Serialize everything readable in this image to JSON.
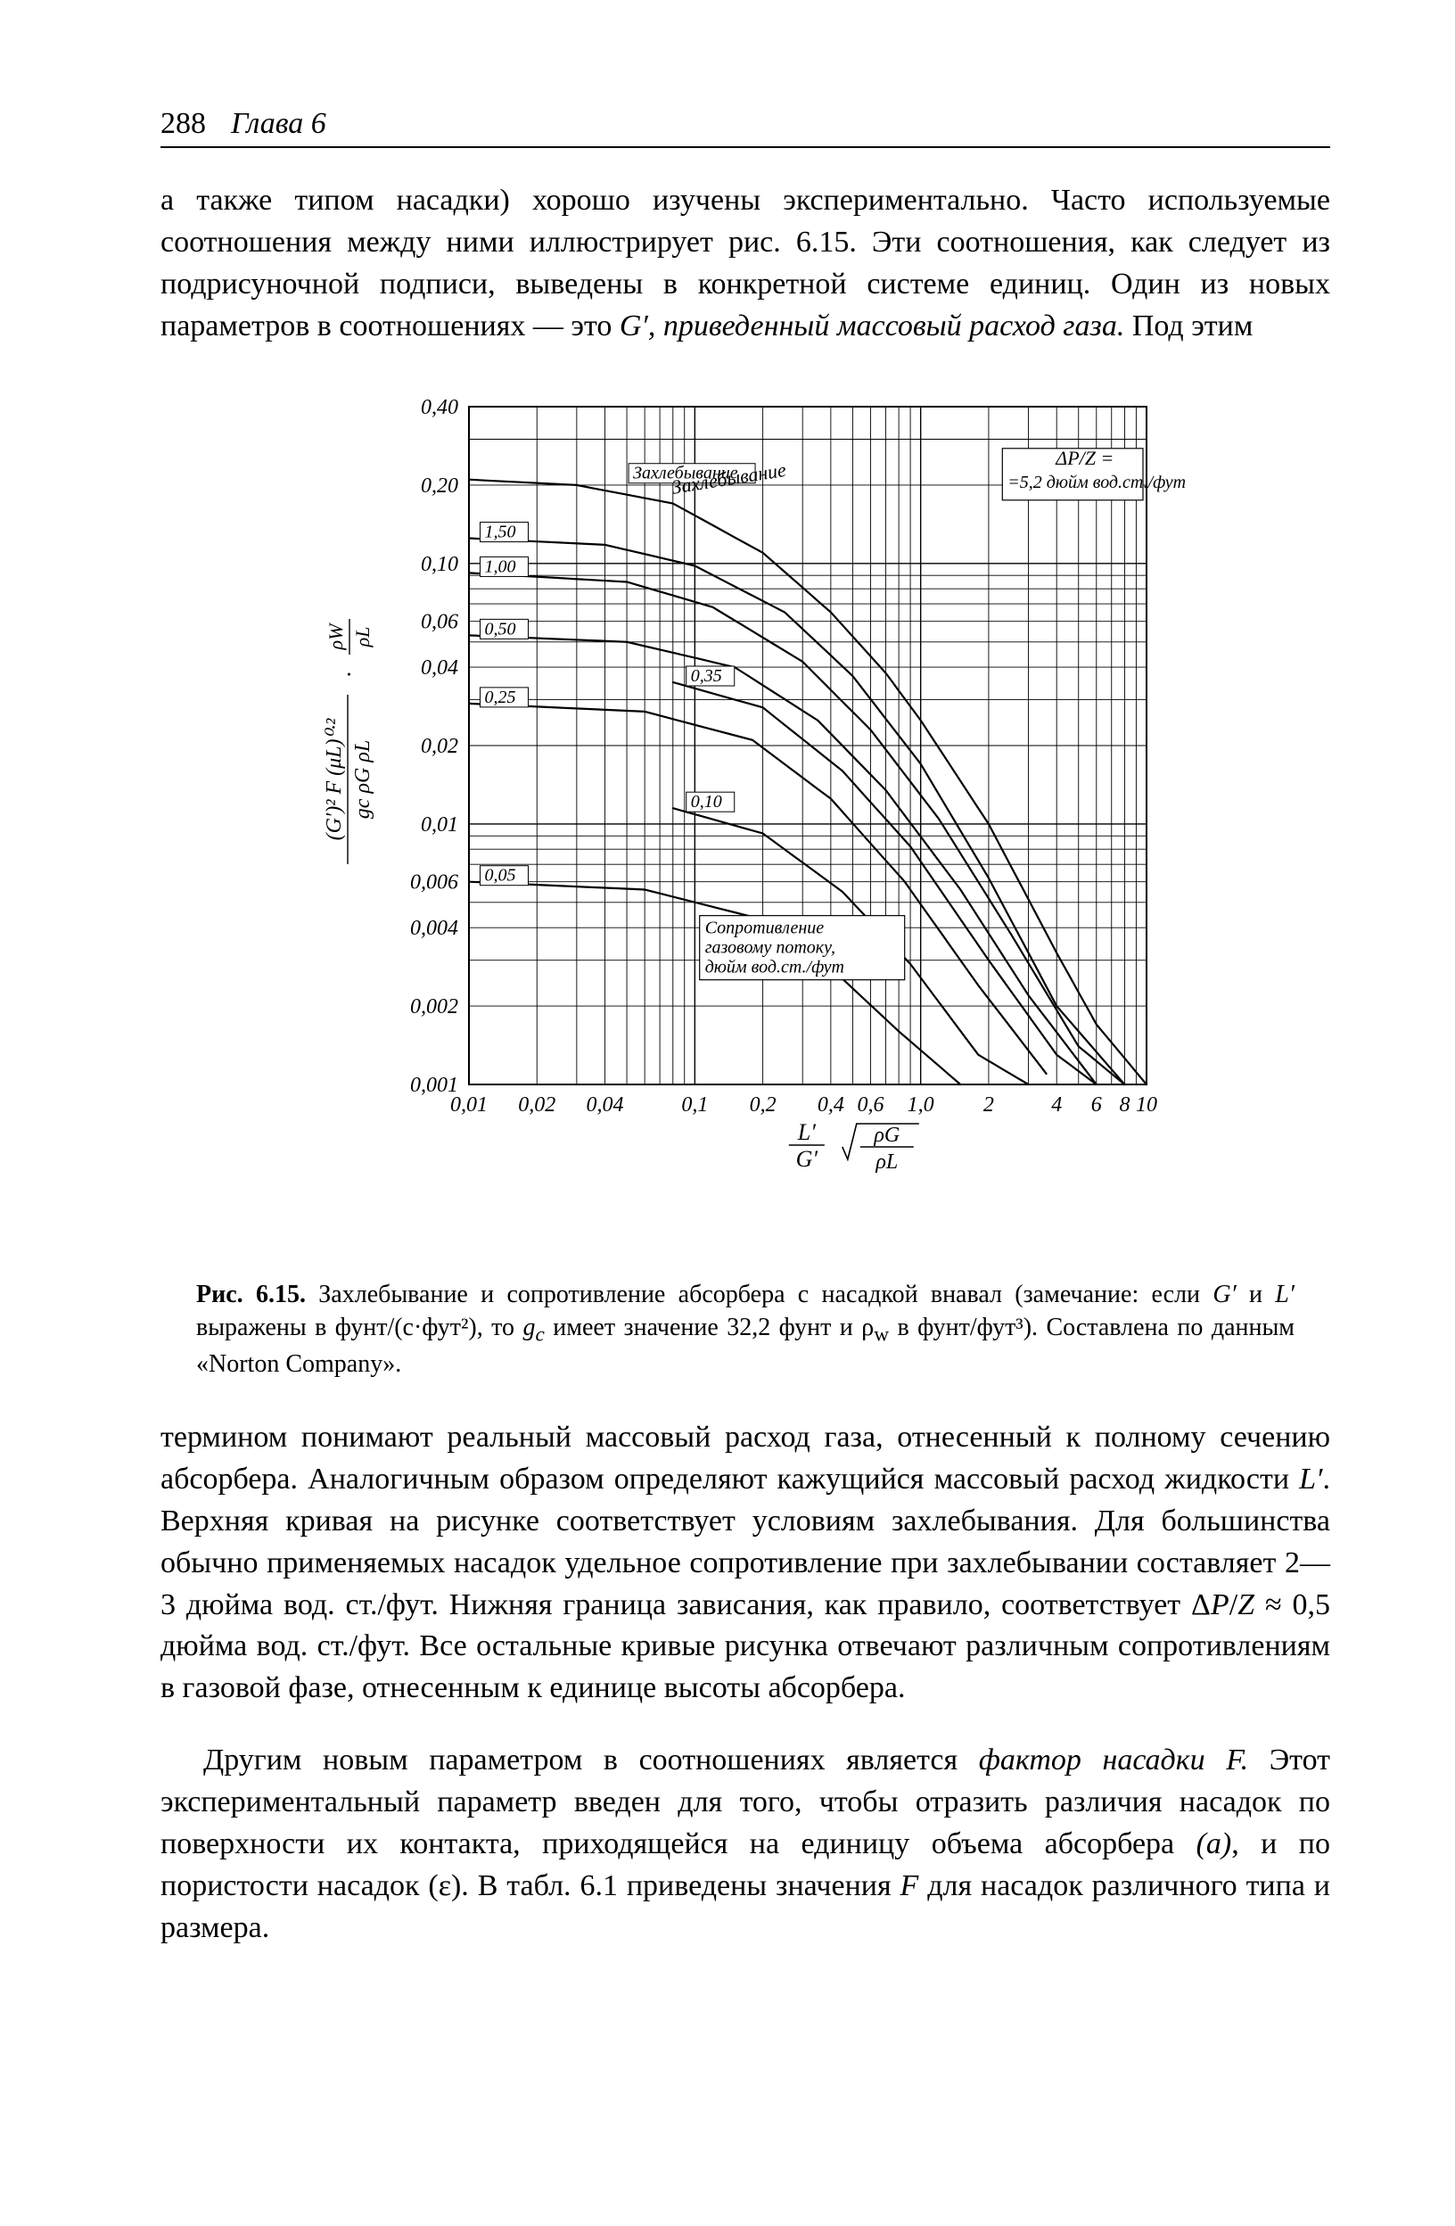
{
  "header": {
    "page_number": "288",
    "chapter": "Глава 6"
  },
  "paragraphs": {
    "p1_html": "а также типом насадки) хорошо изучены экспериментально. Часто используемые соотношения между ними иллюстрирует рис. 6.15. Эти соотношения, как следует из подрисуночной подписи, выведены в конкретной системе единиц. Один из новых параметров в соотношениях — это <em>G′, приведенный массовый расход газа.</em> Под этим",
    "p2_html": "термином понимают реальный массовый расход газа, отнесенный к полному сечению абсорбера. Аналогичным образом определяют кажущийся массовый расход жидкости <em>L′</em>. Верхняя кривая на рисунке соответствует условиям захлебывания. Для большинства обычно применяемых насадок удельное сопротивление при захлебывании составляет 2—3 дюйма вод. ст./фут. Нижняя граница зависания, как правило, соответствует Δ<em>P</em>/<em>Z</em> ≈ 0,5 дюйма вод. ст./фут. Все остальные кривые рисунка отвечают различным сопротивлениям в газовой фазе, отнесенным к единице высоты абсорбера.",
    "p3_html": "Другим новым параметром в соотношениях является <em>фактор насадки F.</em> Этот экспериментальный параметр введен для того, чтобы отразить различия насадок по поверхности их контакта, приходящейся на единицу объема абсорбера <em>(a)</em>, и по пористости насадок (ε). В табл. 6.1 приведены значения <em>F</em> для насадок различного типа и размера."
  },
  "caption_html": "<b>Рис. 6.15.</b> Захлебывание и сопротивление абсорбера с насадкой внавал (замечание: если <em>G′</em> и <em>L′</em> выражены в фунт/(с·фут²), то <em>g<sub>c</sub></em> имеет значение 32,2 фунт и ρ<sub>w</sub> в фунт/фут³). Составлена по данным «Norton Company».",
  "chart": {
    "type": "log-log-line-chart",
    "background_color": "#ffffff",
    "axis_color": "#000000",
    "grid_color": "#000000",
    "curve_color": "#000000",
    "font_family": "serif",
    "tick_fontsize": 24,
    "label_fontsize": 24,
    "axis": {
      "x": {
        "min": 0.01,
        "max": 10,
        "ticks": [
          0.01,
          0.02,
          0.04,
          0.1,
          0.2,
          0.4,
          0.6,
          1.0,
          2,
          4,
          6,
          8,
          10
        ],
        "tick_labels": [
          "0,01",
          "0,02",
          "0,04",
          "0,1",
          "0,2",
          "0,4",
          "0,6",
          "1,0",
          "2",
          "4",
          "6",
          "8",
          "10"
        ]
      },
      "y": {
        "min": 0.001,
        "max": 0.4,
        "ticks": [
          0.001,
          0.002,
          0.004,
          0.006,
          0.01,
          0.02,
          0.04,
          0.06,
          0.1,
          0.2,
          0.4
        ],
        "tick_labels": [
          "0,001",
          "0,002",
          "0,004",
          "0,006",
          "0,01",
          "0,02",
          "0,04",
          "0,06",
          "0,10",
          "0,20",
          "0,40"
        ]
      }
    },
    "x_axis_label_lines": [
      "L′",
      "G′",
      "√",
      "ρG",
      "ρL"
    ],
    "y_axis_label_lines": [
      "(G′)² F (μL)⁰·²",
      "gc ρG ρL",
      "·",
      "ρW",
      "ρL"
    ],
    "annotations": {
      "flooding_label": "Захлебывание",
      "dp_label_line1": "ΔP/Z =",
      "dp_label_line2": "=5,2 дюйм вод.ст./фут",
      "gas_dp_box_line1": "Сопротивление",
      "gas_dp_box_line2": "газовому потоку,",
      "gas_dp_box_line3": "дюйм вод.ст./фут"
    },
    "line_width_curve": 2.2,
    "line_width_grid_major": 1.4,
    "line_width_grid_minor": 0.9,
    "curves": [
      {
        "label": "Захлебывание",
        "label_anchor": [
          0.05,
          0.21
        ],
        "show_label_on_left": false,
        "points": [
          [
            0.01,
            0.21
          ],
          [
            0.03,
            0.2
          ],
          [
            0.08,
            0.17
          ],
          [
            0.2,
            0.11
          ],
          [
            0.4,
            0.065
          ],
          [
            0.7,
            0.038
          ],
          [
            1.0,
            0.025
          ],
          [
            2.0,
            0.01
          ],
          [
            4.0,
            0.0032
          ],
          [
            6.0,
            0.0017
          ],
          [
            10.0,
            0.001
          ]
        ]
      },
      {
        "label": "1,50",
        "label_anchor": [
          0.011,
          0.125
        ],
        "points": [
          [
            0.01,
            0.125
          ],
          [
            0.04,
            0.118
          ],
          [
            0.1,
            0.098
          ],
          [
            0.25,
            0.065
          ],
          [
            0.5,
            0.037
          ],
          [
            1.0,
            0.017
          ],
          [
            2.0,
            0.0062
          ],
          [
            4.0,
            0.002
          ],
          [
            8.0,
            0.001
          ]
        ]
      },
      {
        "label": "1,00",
        "label_anchor": [
          0.011,
          0.092
        ],
        "points": [
          [
            0.01,
            0.092
          ],
          [
            0.05,
            0.085
          ],
          [
            0.12,
            0.068
          ],
          [
            0.3,
            0.042
          ],
          [
            0.6,
            0.023
          ],
          [
            1.2,
            0.0105
          ],
          [
            2.5,
            0.0038
          ],
          [
            5.0,
            0.0014
          ],
          [
            8.0,
            0.001
          ]
        ]
      },
      {
        "label": "0,50",
        "label_anchor": [
          0.011,
          0.053
        ],
        "points": [
          [
            0.01,
            0.053
          ],
          [
            0.05,
            0.05
          ],
          [
            0.15,
            0.04
          ],
          [
            0.35,
            0.025
          ],
          [
            0.7,
            0.0135
          ],
          [
            1.5,
            0.0056
          ],
          [
            3.0,
            0.0022
          ],
          [
            6.0,
            0.001
          ]
        ]
      },
      {
        "label": "0,35",
        "label_anchor": [
          0.09,
          0.035
        ],
        "points": [
          [
            0.08,
            0.035
          ],
          [
            0.2,
            0.028
          ],
          [
            0.45,
            0.016
          ],
          [
            0.9,
            0.0082
          ],
          [
            2.0,
            0.003
          ],
          [
            4.0,
            0.0013
          ],
          [
            6.0,
            0.001
          ]
        ]
      },
      {
        "label": "0,25",
        "label_anchor": [
          0.011,
          0.029
        ],
        "points": [
          [
            0.01,
            0.029
          ],
          [
            0.06,
            0.027
          ],
          [
            0.18,
            0.021
          ],
          [
            0.4,
            0.0125
          ],
          [
            0.85,
            0.006
          ],
          [
            1.8,
            0.0024
          ],
          [
            3.6,
            0.0011
          ]
        ]
      },
      {
        "label": "0,10",
        "label_anchor": [
          0.09,
          0.0115
        ],
        "points": [
          [
            0.08,
            0.0115
          ],
          [
            0.2,
            0.0092
          ],
          [
            0.45,
            0.0055
          ],
          [
            0.9,
            0.0029
          ],
          [
            1.8,
            0.0013
          ],
          [
            3.0,
            0.001
          ]
        ]
      },
      {
        "label": "0,05",
        "label_anchor": [
          0.011,
          0.006
        ],
        "points": [
          [
            0.01,
            0.006
          ],
          [
            0.06,
            0.0056
          ],
          [
            0.18,
            0.0044
          ],
          [
            0.4,
            0.0028
          ],
          [
            0.8,
            0.0016
          ],
          [
            1.5,
            0.001
          ]
        ]
      }
    ]
  }
}
